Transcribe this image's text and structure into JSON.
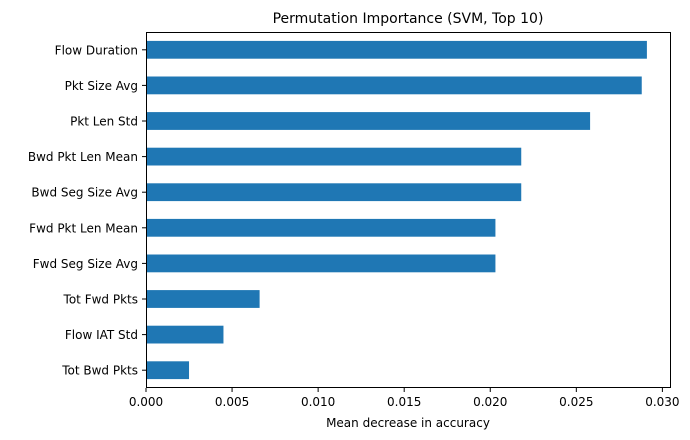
{
  "chart_data": {
    "type": "bar",
    "orientation": "horizontal",
    "title": "Permutation Importance (SVM, Top 10)",
    "xlabel": "Mean decrease in accuracy",
    "ylabel": "",
    "categories": [
      "Flow Duration",
      "Pkt Size Avg",
      "Pkt Len Std",
      "Bwd Pkt Len Mean",
      "Bwd Seg Size Avg",
      "Fwd Pkt Len Mean",
      "Fwd Seg Size Avg",
      "Tot Fwd Pkts",
      "Flow IAT Std",
      "Tot Bwd Pkts"
    ],
    "values": [
      0.0291,
      0.0288,
      0.0258,
      0.0218,
      0.0218,
      0.0203,
      0.0203,
      0.0066,
      0.0045,
      0.0025
    ],
    "xlim": [
      0,
      0.0305
    ],
    "xticks": [
      0,
      0.005,
      0.01,
      0.015,
      0.02,
      0.025,
      0.03
    ],
    "xtick_labels": [
      "0.000",
      "0.005",
      "0.010",
      "0.015",
      "0.020",
      "0.025",
      "0.030"
    ],
    "bar_color": "#1f77b4",
    "grid": false,
    "legend": "none"
  }
}
